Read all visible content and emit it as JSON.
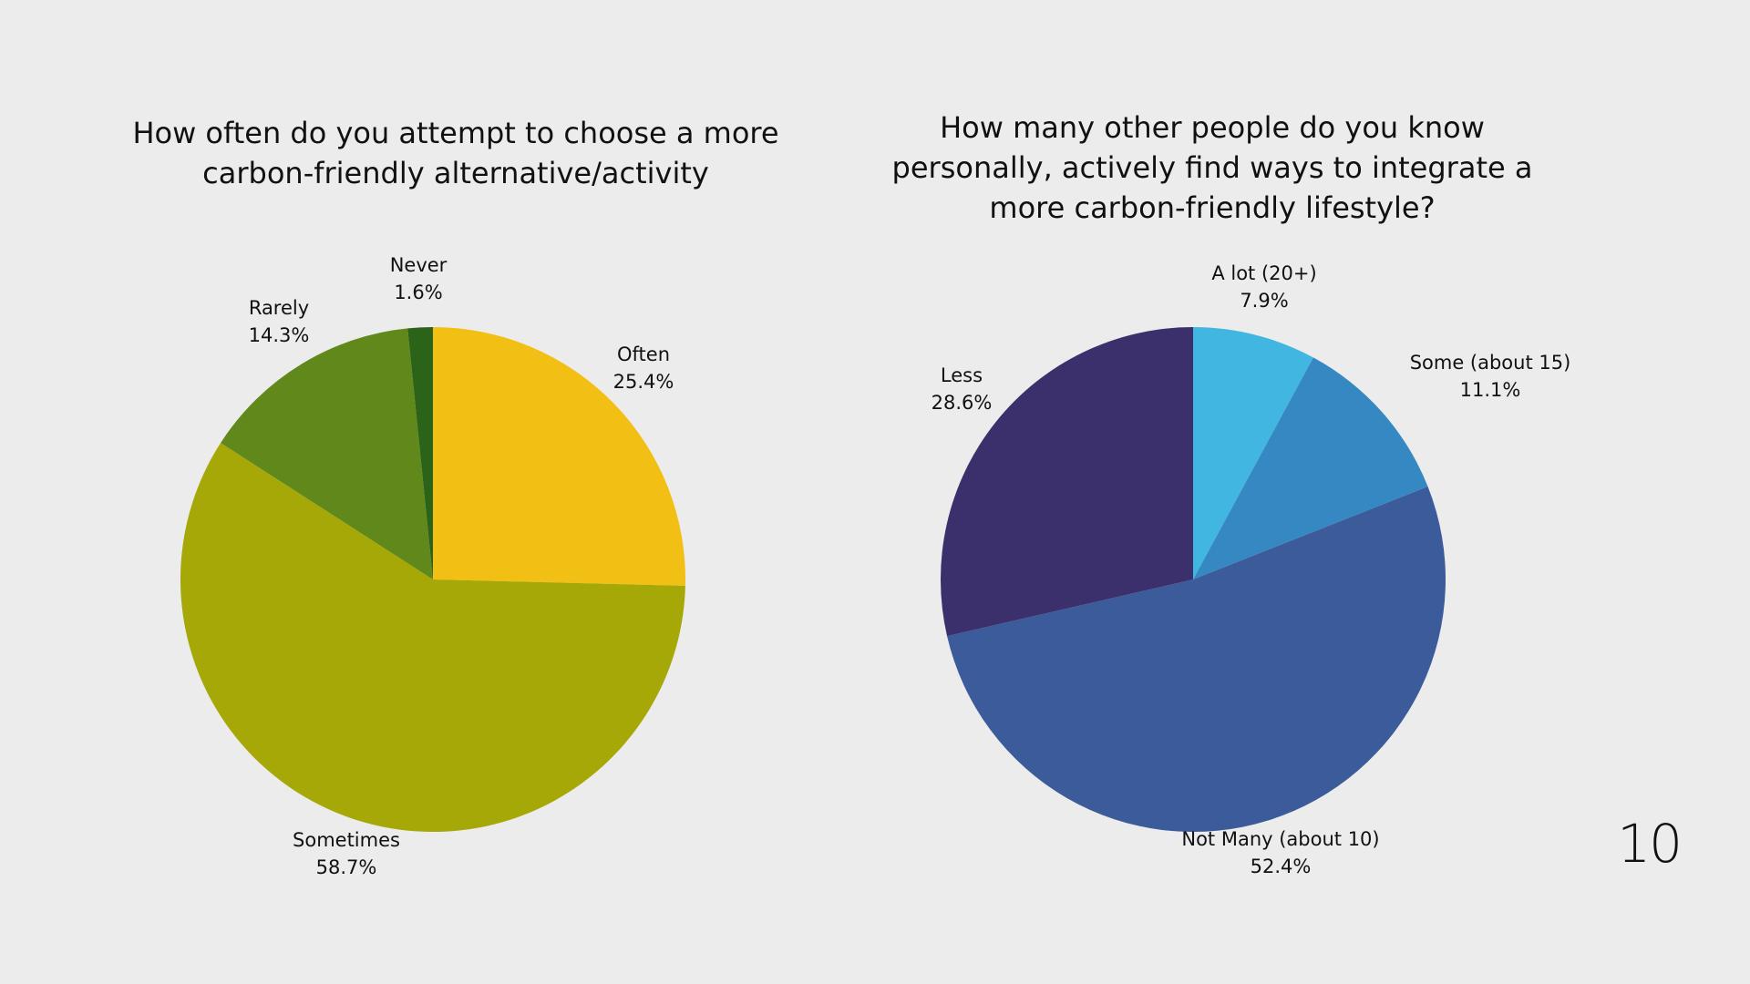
{
  "page_number": "10",
  "chart_data": [
    {
      "type": "pie",
      "title": "How often do you attempt to choose a more carbon-friendly alternative/activity",
      "slices": [
        {
          "label": "Often",
          "value": 25.4,
          "value_label": "25.4%",
          "color": "#f2bf14"
        },
        {
          "label": "Sometimes",
          "value": 58.7,
          "value_label": "58.7%",
          "color": "#a5a806"
        },
        {
          "label": "Rarely",
          "value": 14.3,
          "value_label": "14.3%",
          "color": "#61881a"
        },
        {
          "label": "Never",
          "value": 1.6,
          "value_label": "1.6%",
          "color": "#2b6318"
        }
      ]
    },
    {
      "type": "pie",
      "title": "How many other people do you know personally, actively find ways to integrate a more carbon-friendly lifestyle?",
      "slices": [
        {
          "label": "A lot (20+)",
          "value": 7.9,
          "value_label": "7.9%",
          "color": "#41b6e0"
        },
        {
          "label": "Some (about 15)",
          "value": 11.1,
          "value_label": "11.1%",
          "color": "#3688c2"
        },
        {
          "label": "Not Many (about 10)",
          "value": 52.4,
          "value_label": "52.4%",
          "color": "#3c5b9a"
        },
        {
          "label": "Less",
          "value": 28.6,
          "value_label": "28.6%",
          "color": "#3b2f6c"
        }
      ]
    }
  ]
}
